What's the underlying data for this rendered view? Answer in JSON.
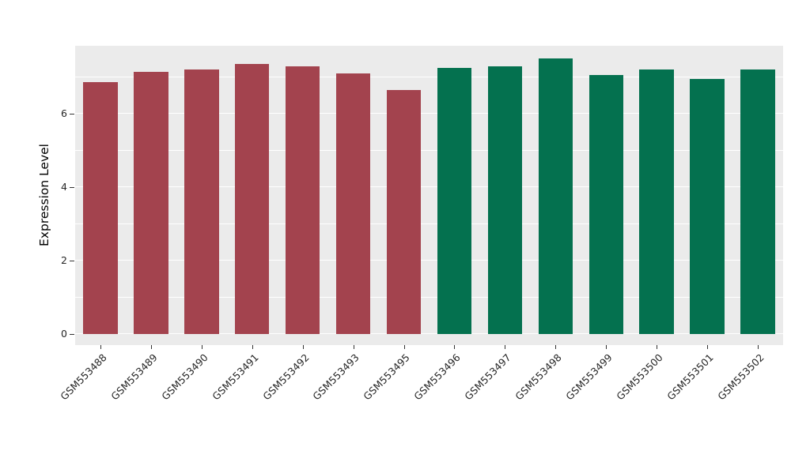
{
  "figure": {
    "background": "#ffffff",
    "panel_background": "#ebebeb",
    "grid_color": "#ffffff",
    "axis_text_color": "#262626"
  },
  "chart_data": {
    "type": "bar",
    "title": "",
    "xlabel": "",
    "ylabel": "Expression Level",
    "ylim": [
      0,
      7.8
    ],
    "yticks": [
      0,
      2,
      4,
      6
    ],
    "minor_gridlines": [
      1,
      3,
      5,
      7
    ],
    "grid": true,
    "legend": "none",
    "categories": [
      "GSM553488",
      "GSM553489",
      "GSM553490",
      "GSM553491",
      "GSM553492",
      "GSM553493",
      "GSM553495",
      "GSM553496",
      "GSM553497",
      "GSM553498",
      "GSM553499",
      "GSM553500",
      "GSM553501",
      "GSM553502"
    ],
    "values": [
      6.85,
      7.15,
      7.2,
      7.35,
      7.3,
      7.1,
      6.65,
      7.25,
      7.3,
      7.5,
      7.05,
      7.2,
      6.95,
      7.2
    ],
    "bar_colors": [
      "#A3434E",
      "#A3434E",
      "#A3434E",
      "#A3434E",
      "#A3434E",
      "#A3434E",
      "#A3434E",
      "#04714F",
      "#04714F",
      "#04714F",
      "#04714F",
      "#04714F",
      "#04714F",
      "#04714F"
    ],
    "group_colors": {
      "group_1": "#A3434E",
      "group_2": "#04714F"
    }
  }
}
